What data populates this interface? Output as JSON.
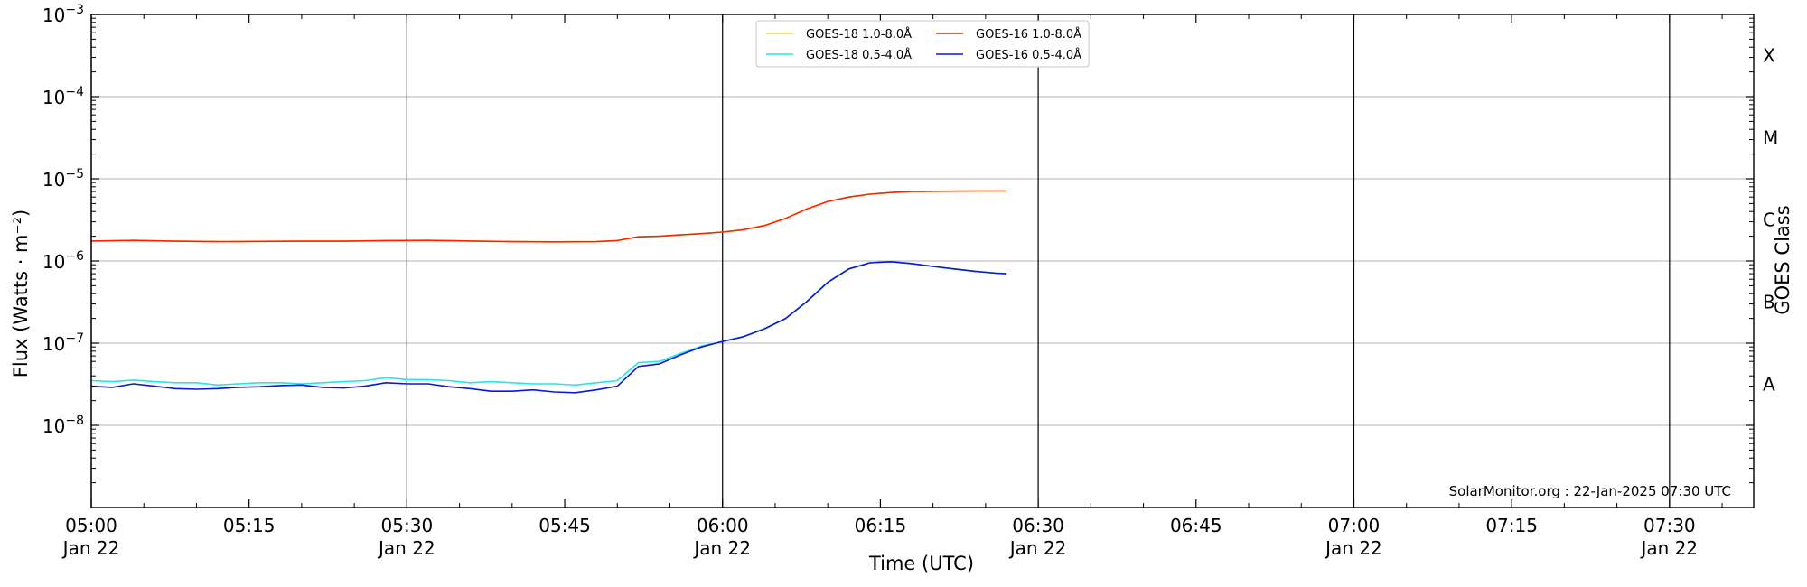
{
  "chart_data": {
    "type": "line",
    "xlabel": "Time (UTC)",
    "ylabel": "Flux (Watts · m⁻²)",
    "right_label": "GOES Class",
    "credit": "SolarMonitor.org : 22-Jan-2025 07:30 UTC",
    "x_unit": "minutes after 05:00 UTC, Jan 22",
    "xlim": [
      0,
      158
    ],
    "ylim_log10": [
      -9,
      -3
    ],
    "y_scale": "log",
    "grid": "horizontal at decades, vertical at every 30 minutes",
    "x_ticks": [
      {
        "t": 0,
        "time": "05:00",
        "date": "Jan 22"
      },
      {
        "t": 15,
        "time": "05:15",
        "date": ""
      },
      {
        "t": 30,
        "time": "05:30",
        "date": "Jan 22"
      },
      {
        "t": 45,
        "time": "05:45",
        "date": ""
      },
      {
        "t": 60,
        "time": "06:00",
        "date": "Jan 22"
      },
      {
        "t": 75,
        "time": "06:15",
        "date": ""
      },
      {
        "t": 90,
        "time": "06:30",
        "date": "Jan 22"
      },
      {
        "t": 105,
        "time": "06:45",
        "date": ""
      },
      {
        "t": 120,
        "time": "07:00",
        "date": "Jan 22"
      },
      {
        "t": 135,
        "time": "07:15",
        "date": ""
      },
      {
        "t": 150,
        "time": "07:30",
        "date": "Jan 22"
      }
    ],
    "y_ticks": [
      {
        "exp": -8,
        "base": "10",
        "sup": "−8"
      },
      {
        "exp": -7,
        "base": "10",
        "sup": "−7"
      },
      {
        "exp": -6,
        "base": "10",
        "sup": "−6"
      },
      {
        "exp": -5,
        "base": "10",
        "sup": "−5"
      },
      {
        "exp": -4,
        "base": "10",
        "sup": "−4"
      },
      {
        "exp": -3,
        "base": "10",
        "sup": "−3"
      }
    ],
    "goes_classes": [
      {
        "label": "A",
        "exp": -7.5
      },
      {
        "label": "B",
        "exp": -6.5
      },
      {
        "label": "C",
        "exp": -5.5
      },
      {
        "label": "M",
        "exp": -4.5
      },
      {
        "label": "X",
        "exp": -3.5
      }
    ],
    "legend": {
      "position": "top-center",
      "entries": [
        {
          "label": "GOES-18 1.0-8.0Å",
          "color": "#ffd700"
        },
        {
          "label": "GOES-18 0.5-4.0Å",
          "color": "#22e5ee"
        },
        {
          "label": "GOES-16 1.0-8.0Å",
          "color": "#ff2200"
        },
        {
          "label": "GOES-16 0.5-4.0Å",
          "color": "#0b18d6"
        }
      ]
    },
    "series": [
      {
        "name": "GOES-18 1.0-8.0Å",
        "color": "#ffd700",
        "points": [
          [
            0,
            1.75e-06
          ],
          [
            4,
            1.78e-06
          ],
          [
            8,
            1.74e-06
          ],
          [
            12,
            1.72e-06
          ],
          [
            16,
            1.73e-06
          ],
          [
            20,
            1.74e-06
          ],
          [
            24,
            1.74e-06
          ],
          [
            28,
            1.77e-06
          ],
          [
            32,
            1.78e-06
          ],
          [
            36,
            1.75e-06
          ],
          [
            40,
            1.72e-06
          ],
          [
            44,
            1.71e-06
          ],
          [
            48,
            1.72e-06
          ],
          [
            50,
            1.77e-06
          ],
          [
            52,
            1.97e-06
          ],
          [
            54,
            2e-06
          ],
          [
            56,
            2.08e-06
          ],
          [
            58,
            2.15e-06
          ],
          [
            60,
            2.25e-06
          ],
          [
            62,
            2.4e-06
          ],
          [
            64,
            2.7e-06
          ],
          [
            66,
            3.3e-06
          ],
          [
            68,
            4.3e-06
          ],
          [
            70,
            5.3e-06
          ],
          [
            72,
            6e-06
          ],
          [
            74,
            6.5e-06
          ],
          [
            76,
            6.8e-06
          ],
          [
            78,
            7e-06
          ],
          [
            80,
            7.05e-06
          ],
          [
            84,
            7.1e-06
          ],
          [
            87,
            7.1e-06
          ]
        ]
      },
      {
        "name": "GOES-16 1.0-8.0Å",
        "color": "#ff2200",
        "points": [
          [
            0,
            1.75e-06
          ],
          [
            4,
            1.78e-06
          ],
          [
            8,
            1.74e-06
          ],
          [
            12,
            1.72e-06
          ],
          [
            16,
            1.73e-06
          ],
          [
            20,
            1.74e-06
          ],
          [
            24,
            1.74e-06
          ],
          [
            28,
            1.77e-06
          ],
          [
            32,
            1.78e-06
          ],
          [
            36,
            1.75e-06
          ],
          [
            40,
            1.72e-06
          ],
          [
            44,
            1.71e-06
          ],
          [
            48,
            1.72e-06
          ],
          [
            50,
            1.77e-06
          ],
          [
            52,
            1.97e-06
          ],
          [
            54,
            2e-06
          ],
          [
            56,
            2.08e-06
          ],
          [
            58,
            2.15e-06
          ],
          [
            60,
            2.25e-06
          ],
          [
            62,
            2.4e-06
          ],
          [
            64,
            2.7e-06
          ],
          [
            66,
            3.3e-06
          ],
          [
            68,
            4.3e-06
          ],
          [
            70,
            5.3e-06
          ],
          [
            72,
            6e-06
          ],
          [
            74,
            6.5e-06
          ],
          [
            76,
            6.8e-06
          ],
          [
            78,
            7e-06
          ],
          [
            80,
            7.05e-06
          ],
          [
            84,
            7.1e-06
          ],
          [
            87,
            7.1e-06
          ]
        ]
      },
      {
        "name": "GOES-18 0.5-4.0Å",
        "color": "#22e5ee",
        "points": [
          [
            0,
            3.5e-08
          ],
          [
            2,
            3.4e-08
          ],
          [
            4,
            3.55e-08
          ],
          [
            6,
            3.4e-08
          ],
          [
            8,
            3.3e-08
          ],
          [
            10,
            3.3e-08
          ],
          [
            12,
            3.1e-08
          ],
          [
            14,
            3.2e-08
          ],
          [
            16,
            3.3e-08
          ],
          [
            18,
            3.3e-08
          ],
          [
            20,
            3.2e-08
          ],
          [
            22,
            3.3e-08
          ],
          [
            24,
            3.4e-08
          ],
          [
            26,
            3.5e-08
          ],
          [
            28,
            3.8e-08
          ],
          [
            30,
            3.6e-08
          ],
          [
            32,
            3.6e-08
          ],
          [
            34,
            3.5e-08
          ],
          [
            36,
            3.3e-08
          ],
          [
            38,
            3.4e-08
          ],
          [
            40,
            3.3e-08
          ],
          [
            42,
            3.2e-08
          ],
          [
            44,
            3.2e-08
          ],
          [
            46,
            3.1e-08
          ],
          [
            48,
            3.3e-08
          ],
          [
            50,
            3.5e-08
          ],
          [
            52,
            5.8e-08
          ],
          [
            54,
            6e-08
          ],
          [
            56,
            7.5e-08
          ],
          [
            58,
            9.2e-08
          ],
          [
            60,
            1.05e-07
          ],
          [
            62,
            1.2e-07
          ],
          [
            64,
            1.5e-07
          ],
          [
            66,
            2e-07
          ],
          [
            68,
            3.2e-07
          ],
          [
            70,
            5.5e-07
          ],
          [
            72,
            8e-07
          ],
          [
            74,
            9.5e-07
          ],
          [
            76,
            9.8e-07
          ],
          [
            78,
            9.3e-07
          ],
          [
            80,
            8.6e-07
          ],
          [
            82,
            8e-07
          ],
          [
            84,
            7.5e-07
          ],
          [
            86,
            7.1e-07
          ],
          [
            87,
            7e-07
          ]
        ]
      },
      {
        "name": "GOES-16 0.5-4.0Å",
        "color": "#0b18d6",
        "points": [
          [
            0,
            3e-08
          ],
          [
            2,
            2.9e-08
          ],
          [
            4,
            3.2e-08
          ],
          [
            6,
            3e-08
          ],
          [
            8,
            2.8e-08
          ],
          [
            10,
            2.75e-08
          ],
          [
            12,
            2.8e-08
          ],
          [
            14,
            2.9e-08
          ],
          [
            16,
            2.95e-08
          ],
          [
            18,
            3.05e-08
          ],
          [
            20,
            3.1e-08
          ],
          [
            22,
            2.9e-08
          ],
          [
            24,
            2.85e-08
          ],
          [
            26,
            3e-08
          ],
          [
            28,
            3.3e-08
          ],
          [
            30,
            3.2e-08
          ],
          [
            32,
            3.2e-08
          ],
          [
            34,
            2.95e-08
          ],
          [
            36,
            2.8e-08
          ],
          [
            38,
            2.6e-08
          ],
          [
            40,
            2.6e-08
          ],
          [
            42,
            2.7e-08
          ],
          [
            44,
            2.55e-08
          ],
          [
            46,
            2.5e-08
          ],
          [
            48,
            2.7e-08
          ],
          [
            50,
            3e-08
          ],
          [
            52,
            5.2e-08
          ],
          [
            54,
            5.6e-08
          ],
          [
            56,
            7.2e-08
          ],
          [
            58,
            9e-08
          ],
          [
            60,
            1.05e-07
          ],
          [
            62,
            1.2e-07
          ],
          [
            64,
            1.5e-07
          ],
          [
            66,
            2e-07
          ],
          [
            68,
            3.2e-07
          ],
          [
            70,
            5.5e-07
          ],
          [
            72,
            8e-07
          ],
          [
            74,
            9.5e-07
          ],
          [
            76,
            9.8e-07
          ],
          [
            78,
            9.3e-07
          ],
          [
            80,
            8.6e-07
          ],
          [
            82,
            8e-07
          ],
          [
            84,
            7.5e-07
          ],
          [
            86,
            7.1e-07
          ],
          [
            87,
            7e-07
          ]
        ]
      }
    ]
  }
}
